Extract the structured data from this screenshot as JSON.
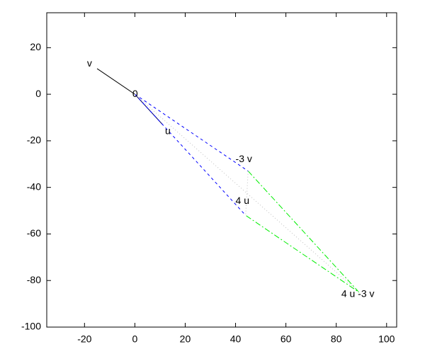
{
  "chart_data": {
    "type": "vector",
    "xlim": [
      -35,
      104
    ],
    "ylim": [
      -100,
      35
    ],
    "xticks": [
      -20,
      0,
      20,
      40,
      60,
      80,
      100
    ],
    "yticks": [
      -100,
      -80,
      -60,
      -40,
      -20,
      0,
      20
    ],
    "series": [
      {
        "color": "#000000",
        "style": "solid",
        "x": [
          -15,
          0
        ],
        "y": [
          11,
          0
        ]
      },
      {
        "color": "#000066",
        "style": "solid",
        "x": [
          0,
          11
        ],
        "y": [
          0,
          -13
        ]
      },
      {
        "color": "#0000ff",
        "style": "dashed",
        "x": [
          0,
          45
        ],
        "y": [
          0,
          -33
        ]
      },
      {
        "color": "#0000ff",
        "style": "dashed",
        "x": [
          0,
          44
        ],
        "y": [
          0,
          -52
        ]
      },
      {
        "color": "#00ee00",
        "style": "dashdot",
        "x": [
          45,
          89,
          44
        ],
        "y": [
          -33,
          -85,
          -52
        ]
      },
      {
        "color": "#c0c0c0",
        "style": "dotted",
        "x": [
          0,
          89
        ],
        "y": [
          0,
          -85
        ]
      },
      {
        "color": "#c0c0c0",
        "style": "dotted",
        "x": [
          45,
          44
        ],
        "y": [
          -33,
          -52
        ]
      }
    ],
    "labels": [
      {
        "text": "v",
        "x": -19,
        "y": 13
      },
      {
        "text": "0",
        "x": -1,
        "y": 0
      },
      {
        "text": "u",
        "x": 12,
        "y": -16
      },
      {
        "text": "-3 v",
        "x": 40,
        "y": -28
      },
      {
        "text": "4 u",
        "x": 40,
        "y": -46
      },
      {
        "text": "4 u -3 v",
        "x": 82,
        "y": -86
      }
    ]
  }
}
